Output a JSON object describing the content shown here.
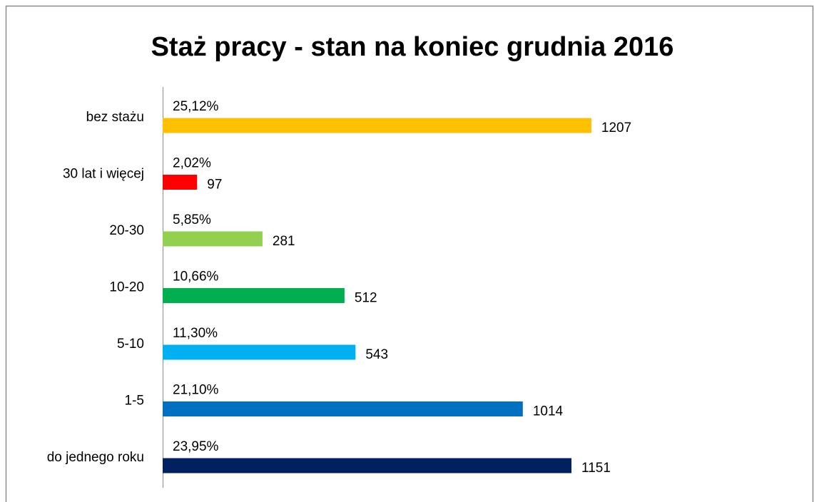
{
  "chart_data": {
    "type": "bar",
    "orientation": "horizontal",
    "title": "Staż pracy - stan na koniec grudnia 2016",
    "categories": [
      "bez stażu",
      "30 lat i więcej",
      "20-30",
      "10-20",
      "5-10",
      "1-5",
      "do jednego roku"
    ],
    "series": [
      {
        "values": [
          1207,
          97,
          281,
          512,
          543,
          1014,
          1151
        ],
        "colors": [
          "#ffc000",
          "#ff0000",
          "#92d050",
          "#00b050",
          "#00b0f0",
          "#0070c0",
          "#002060"
        ]
      },
      {
        "values": [
          25.12,
          2.02,
          5.85,
          10.66,
          11.3,
          21.1,
          23.95
        ],
        "value_labels": [
          "25,12%",
          "2,02%",
          "5,85%",
          "10,66%",
          "11,30%",
          "21,10%",
          "23,95%"
        ]
      }
    ],
    "xlim": [
      0,
      1400
    ]
  }
}
